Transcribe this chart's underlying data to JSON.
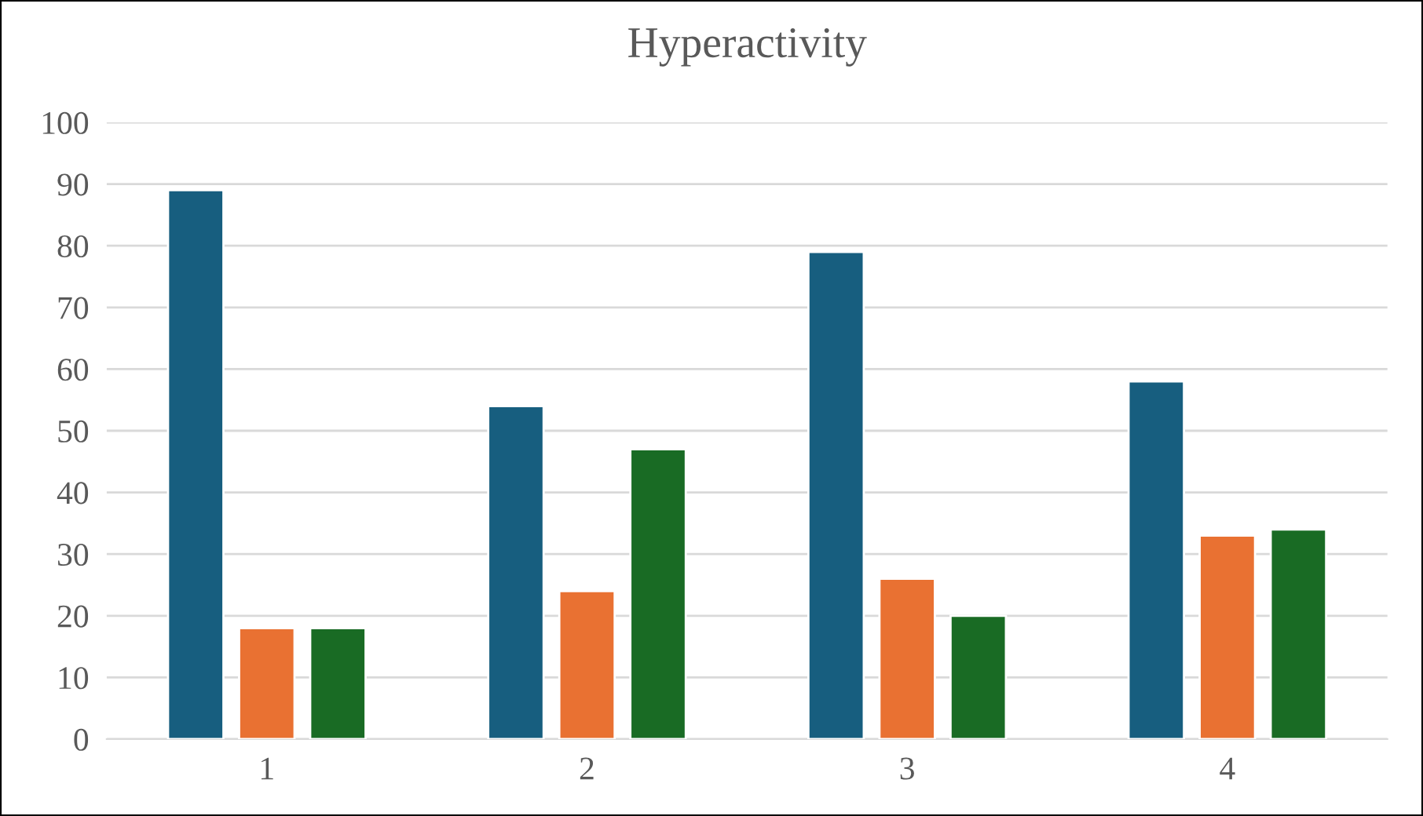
{
  "chart_data": {
    "type": "bar",
    "title": "Hyperactivity",
    "categories": [
      "1",
      "2",
      "3",
      "4"
    ],
    "series": [
      {
        "color": "#175e7f",
        "values": [
          89,
          54,
          79,
          58
        ]
      },
      {
        "color": "#e97132",
        "values": [
          18,
          24,
          26,
          33
        ]
      },
      {
        "color": "#196b24",
        "values": [
          18,
          47,
          20,
          34
        ]
      }
    ],
    "ylim": [
      0,
      100
    ],
    "yticks": [
      0,
      10,
      20,
      30,
      40,
      50,
      60,
      70,
      80,
      90,
      100
    ],
    "grid": "y"
  }
}
